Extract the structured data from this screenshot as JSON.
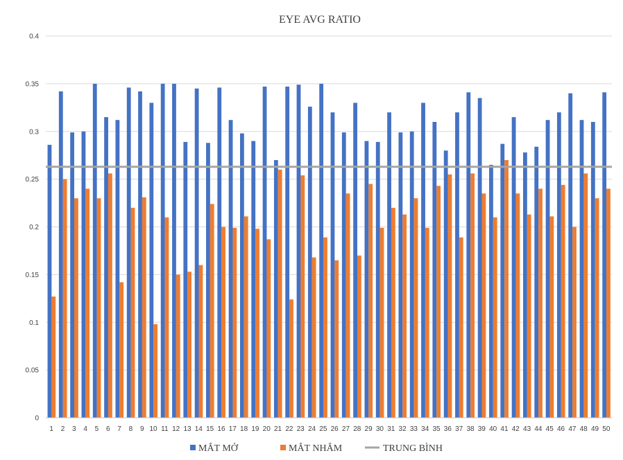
{
  "chart_data": {
    "type": "bar",
    "title": "EYE AVG RATIO",
    "xlabel": "",
    "ylabel": "",
    "ylim": [
      0,
      0.4
    ],
    "yticks": [
      "0",
      "0.05",
      "0.1",
      "0.15",
      "0.2",
      "0.25",
      "0.3",
      "0.35",
      "0.4"
    ],
    "grid": true,
    "legend_position": "bottom",
    "categories": [
      "1",
      "2",
      "3",
      "4",
      "5",
      "6",
      "7",
      "8",
      "9",
      "10",
      "11",
      "12",
      "13",
      "14",
      "15",
      "16",
      "17",
      "18",
      "19",
      "20",
      "21",
      "22",
      "23",
      "24",
      "25",
      "26",
      "27",
      "28",
      "29",
      "30",
      "31",
      "32",
      "33",
      "34",
      "35",
      "36",
      "37",
      "38",
      "39",
      "40",
      "41",
      "42",
      "43",
      "44",
      "45",
      "46",
      "47",
      "48",
      "49",
      "50"
    ],
    "series": [
      {
        "name": "MẮT MỞ",
        "color": "#4472c4",
        "values": [
          0.286,
          0.342,
          0.299,
          0.3,
          0.35,
          0.315,
          0.312,
          0.346,
          0.342,
          0.33,
          0.35,
          0.35,
          0.289,
          0.345,
          0.288,
          0.346,
          0.312,
          0.298,
          0.29,
          0.347,
          0.27,
          0.347,
          0.349,
          0.326,
          0.35,
          0.32,
          0.299,
          0.33,
          0.29,
          0.289,
          0.32,
          0.299,
          0.3,
          0.33,
          0.31,
          0.28,
          0.32,
          0.341,
          0.335,
          0.265,
          0.287,
          0.315,
          0.278,
          0.284,
          0.312,
          0.32,
          0.34,
          0.312,
          0.31,
          0.341
        ]
      },
      {
        "name": "MẮT NHẮM",
        "color": "#ed7d31",
        "values": [
          0.127,
          0.25,
          0.23,
          0.24,
          0.23,
          0.256,
          0.142,
          0.22,
          0.231,
          0.098,
          0.21,
          0.15,
          0.153,
          0.16,
          0.224,
          0.2,
          0.199,
          0.211,
          0.198,
          0.187,
          0.26,
          0.124,
          0.254,
          0.168,
          0.189,
          0.165,
          0.235,
          0.17,
          0.245,
          0.199,
          0.22,
          0.213,
          0.23,
          0.199,
          0.243,
          0.255,
          0.189,
          0.256,
          0.235,
          0.21,
          0.27,
          0.235,
          0.213,
          0.24,
          0.211,
          0.244,
          0.2,
          0.256,
          0.23,
          0.24
        ]
      }
    ],
    "reference_line": {
      "name": "TRUNG BÌNH",
      "color": "#a5a5a5",
      "value": 0.263
    }
  }
}
